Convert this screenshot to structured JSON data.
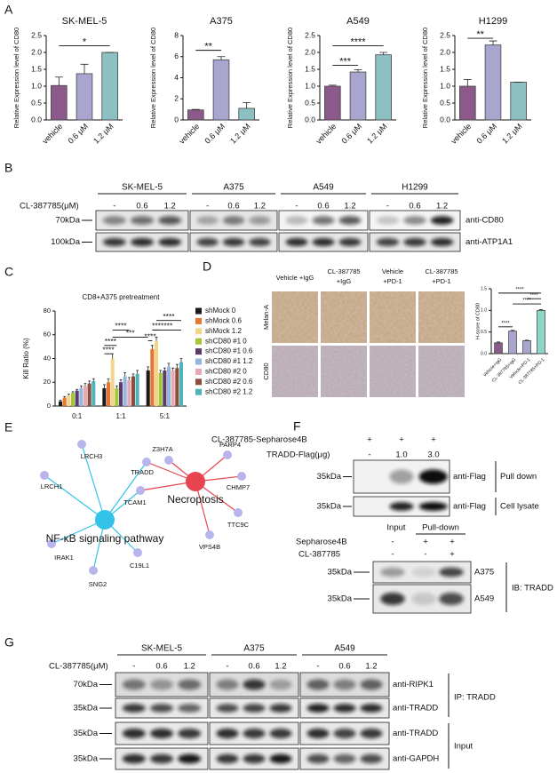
{
  "figure_labels": [
    "A",
    "B",
    "C",
    "D",
    "E",
    "F",
    "G"
  ],
  "chart_data": [
    {
      "type": "bar",
      "title": "SK-MEL-5",
      "ylabel": "Relative Expression level of CD80",
      "categories": [
        "vehicle",
        "0.6 μM",
        "1.2 μM"
      ],
      "values": [
        1.02,
        1.37,
        2.0
      ],
      "errors": [
        0.25,
        0.28,
        0
      ],
      "colors": [
        "#8c5a8a",
        "#a8a5cf",
        "#8cc0c2"
      ],
      "ylim": [
        0,
        2.5
      ],
      "yticks": [
        {
          "value": 0,
          "label": "0.0"
        },
        0.5,
        {
          "value": 1,
          "label": "1.0"
        },
        1.5,
        {
          "value": 2,
          "label": "2.0"
        },
        2.5
      ],
      "annotations": [
        "*"
      ]
    },
    {
      "type": "bar",
      "title": "A375",
      "ylabel": "Relative Expression level of CD80",
      "categories": [
        "vehicle",
        "0.6 μM",
        "1.2 μM"
      ],
      "values": [
        0.95,
        5.7,
        1.1
      ],
      "errors": [
        0.05,
        0.3,
        0.55
      ],
      "colors": [
        "#8c5a8a",
        "#a8a5cf",
        "#8cc0c2"
      ],
      "ylim": [
        0,
        8
      ],
      "yticks": [
        0,
        2,
        4,
        6,
        8
      ],
      "annotations": [
        "**"
      ]
    },
    {
      "type": "bar",
      "title": "A549",
      "ylabel": "Relative Expression level of CD80",
      "categories": [
        "vehicle",
        "0.6 μM",
        "1.2 μM"
      ],
      "values": [
        1.0,
        1.42,
        1.93
      ],
      "errors": [
        0.03,
        0.07,
        0.07
      ],
      "colors": [
        "#8c5a8a",
        "#a8a5cf",
        "#8cc0c2"
      ],
      "ylim": [
        0,
        2.5
      ],
      "yticks": [
        {
          "value": 0,
          "label": "0.0"
        },
        0.5,
        {
          "value": 1,
          "label": "1.0"
        },
        1.5,
        {
          "value": 2,
          "label": "2.0"
        },
        2.5
      ],
      "annotations": [
        "***",
        "****"
      ]
    },
    {
      "type": "bar",
      "title": "H1299",
      "ylabel": "Relative Expression level of CD80",
      "categories": [
        "vehicle",
        "0.6 μM",
        "1.2 μM"
      ],
      "values": [
        1.0,
        2.22,
        1.12
      ],
      "errors": [
        0.2,
        0.12,
        0
      ],
      "colors": [
        "#8c5a8a",
        "#a8a5cf",
        "#8cc0c2"
      ],
      "ylim": [
        0,
        2.5
      ],
      "yticks": [
        {
          "value": 0,
          "label": "0.0"
        },
        0.5,
        {
          "value": 1,
          "label": "1.0"
        },
        1.5,
        {
          "value": 2,
          "label": "2.0"
        },
        2.5
      ],
      "annotations": [
        "**"
      ]
    },
    {
      "type": "bar",
      "title": "CD8+A375 pretreatment",
      "ylabel": "Kill Ratio (%)",
      "categories": [
        "0:1",
        "1:1",
        "5:1"
      ],
      "series": [
        {
          "name": "shMock 0",
          "color": "#1a1a1a",
          "values": [
            4,
            15,
            30
          ],
          "errors": [
            1,
            3,
            3
          ]
        },
        {
          "name": "shMock 0.6",
          "color": "#e5772e",
          "values": [
            7,
            20,
            48
          ],
          "errors": [
            1,
            3,
            3
          ]
        },
        {
          "name": "shMock 1.2",
          "color": "#f2d48a",
          "values": [
            9,
            40,
            55
          ],
          "errors": [
            1,
            4,
            3
          ]
        },
        {
          "name": "shCD80 #1 0",
          "color": "#a2c739",
          "values": [
            11,
            15,
            28
          ],
          "errors": [
            1,
            2,
            2
          ]
        },
        {
          "name": "shCD80 #1 0.6",
          "color": "#5b3b6b",
          "values": [
            13,
            20,
            30
          ],
          "errors": [
            1,
            2,
            2
          ]
        },
        {
          "name": "shCD80 #1 1.2",
          "color": "#93b6de",
          "values": [
            15,
            25,
            33
          ],
          "errors": [
            2,
            3,
            3
          ]
        },
        {
          "name": "shCD80 #2 0",
          "color": "#e6aab4",
          "values": [
            17,
            22,
            30
          ],
          "errors": [
            2,
            2,
            2
          ]
        },
        {
          "name": "shCD80 #2 0.6",
          "color": "#8b4e3d",
          "values": [
            19,
            25,
            32
          ],
          "errors": [
            2,
            2,
            3
          ]
        },
        {
          "name": "shCD80 #2 1.2",
          "color": "#4db4ba",
          "values": [
            21,
            27,
            37
          ],
          "errors": [
            2,
            3,
            3
          ]
        }
      ],
      "ylim": [
        0,
        80
      ],
      "yticks": [
        0,
        20,
        40,
        60,
        80
      ],
      "annotations": [
        "****",
        "****",
        "***",
        "****",
        "****",
        "***",
        "****",
        "****"
      ]
    },
    {
      "type": "bar",
      "ylabel": "H-score of CD80",
      "categories": [
        "Vehicle+IgG",
        "CL-387785+IgG",
        "Vehicle+PD-1",
        "CL-387785+PD-1"
      ],
      "values": [
        0.25,
        0.52,
        0.3,
        1.0
      ],
      "errors": [
        0.02,
        0.02,
        0.01,
        0.02
      ],
      "colors": [
        "#8c5a8a",
        "#a8a5cf",
        "#a8a5cf",
        "#8cd6c8"
      ],
      "ylim": [
        0,
        1.5
      ],
      "yticks": [
        {
          "value": 0,
          "label": "0.0"
        },
        0.5,
        {
          "value": 1,
          "label": "1.0"
        },
        1.5
      ],
      "annotations": [
        "****",
        "****",
        "****",
        "****"
      ]
    }
  ],
  "blot_b": {
    "treatment_label": "CL-387785(μM)",
    "groups": [
      {
        "name": "SK-MEL-5",
        "lanes": [
          "-",
          "0.6",
          "1.2"
        ]
      },
      {
        "name": "A375",
        "lanes": [
          "-",
          "0.6",
          "1.2"
        ]
      },
      {
        "name": "A549",
        "lanes": [
          "-",
          "0.6",
          "1.2"
        ]
      },
      {
        "name": "H1299",
        "lanes": [
          "-",
          "0.6",
          "1.2"
        ]
      }
    ],
    "rows": [
      {
        "marker": "70kDa",
        "antibody": "anti-CD80"
      },
      {
        "marker": "100kDa",
        "antibody": "anti-ATP1A1"
      }
    ]
  },
  "panel_d": {
    "columns": [
      [
        "Vehicle +IgG"
      ],
      [
        "CL-387785",
        "+IgG"
      ],
      [
        "Vehicle",
        "+PD-1"
      ],
      [
        "CL-387785",
        "+PD-1"
      ]
    ],
    "rows": [
      "Melan-A",
      "CD80"
    ]
  },
  "network": {
    "pathways": [
      "Necroptosis",
      "NF-κB signaling pathway"
    ],
    "genes": [
      "Z3H7A",
      "PARP4",
      "CHMP7",
      "TTC9C",
      "VPS4B",
      "TCAM1",
      "TRADD",
      "LRCH3",
      "LRCH1",
      "IRAK1",
      "SNG2",
      "C19L1"
    ]
  },
  "blot_f": {
    "top": {
      "headers": [
        {
          "label": "CL-387785-Sepharose4B",
          "lanes": [
            "+",
            "+",
            "+"
          ]
        },
        {
          "label": "TRADD-Flag(μg)",
          "lanes": [
            "-",
            "1.0",
            "3.0"
          ]
        }
      ],
      "rows": [
        {
          "marker": "35kDa",
          "antibody": "anti-Flag",
          "group": "Pull down"
        },
        {
          "marker": "35kDa",
          "antibody": "anti-Flag",
          "group": "Cell lysate"
        }
      ]
    },
    "bottom": {
      "sections": [
        "Input",
        "Pull-down"
      ],
      "headers": [
        {
          "label": "Sepharose4B",
          "lanes": [
            "-",
            "+",
            "+"
          ]
        },
        {
          "label": "CL-387785",
          "lanes": [
            "-",
            "-",
            "+"
          ]
        }
      ],
      "rows": [
        {
          "marker": "35kDa",
          "cell": "A375"
        },
        {
          "marker": "35kDa",
          "cell": "A549"
        }
      ],
      "antibody": "IB: TRADD"
    }
  },
  "blot_g": {
    "treatment_label": "CL-387785(μM)",
    "groups": [
      {
        "name": "SK-MEL-5",
        "lanes": [
          "-",
          "0.6",
          "1.2"
        ]
      },
      {
        "name": "A375",
        "lanes": [
          "-",
          "0.6",
          "1.2"
        ]
      },
      {
        "name": "A549",
        "lanes": [
          "-",
          "0.6",
          "1.2"
        ]
      }
    ],
    "rows": [
      {
        "marker": "70kDa",
        "antibody": "anti-RIPK1"
      },
      {
        "marker": "35kDa",
        "antibody": "anti-TRADD"
      },
      {
        "marker": "35kDa",
        "antibody": "anti-TRADD"
      },
      {
        "marker": "35kDa",
        "antibody": "anti-GAPDH"
      }
    ],
    "sections": [
      "IP: TRADD",
      "Input"
    ]
  }
}
